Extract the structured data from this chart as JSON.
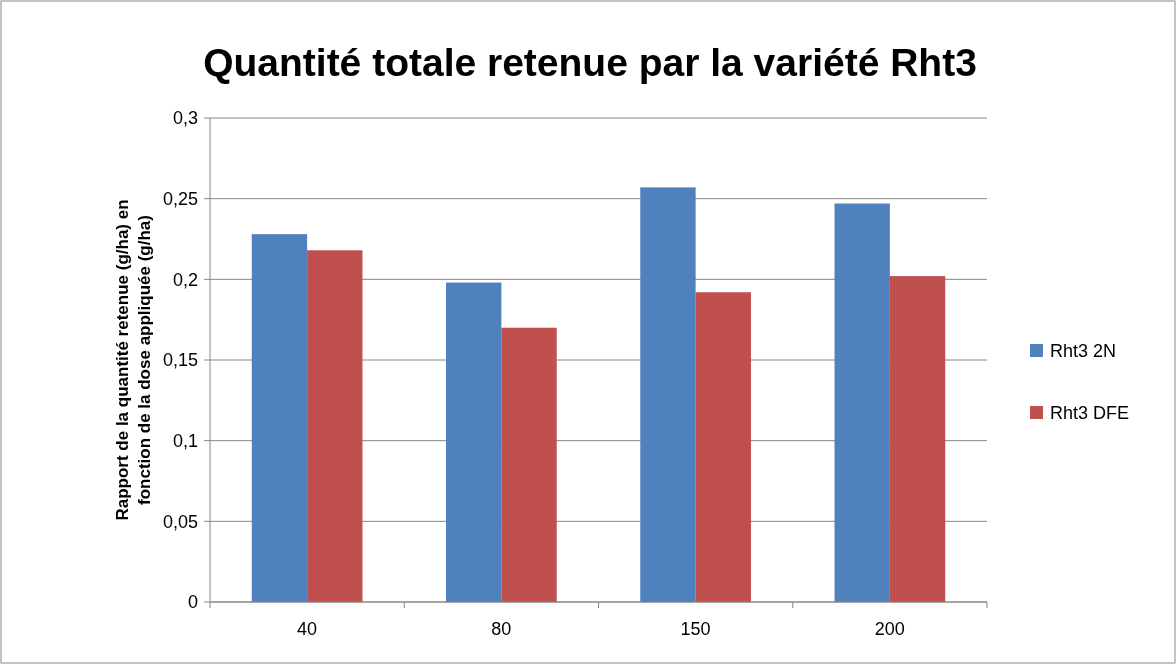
{
  "chart_data": {
    "type": "bar",
    "title": "Quantité totale retenue par la variété Rht3",
    "ylabel": "Rapport de la quantité retenue (g/ha) en fonction de la dose appliquée (g/ha)",
    "categories": [
      "40",
      "80",
      "150",
      "200"
    ],
    "series": [
      {
        "name": "Rht3 2N",
        "color": "#4f81bd",
        "values": [
          0.228,
          0.198,
          0.257,
          0.247
        ]
      },
      {
        "name": "Rht3 DFE",
        "color": "#c0504d",
        "values": [
          0.218,
          0.17,
          0.192,
          0.202
        ]
      }
    ],
    "ylim": [
      0,
      0.3
    ],
    "yticks": [
      0,
      {
        "value": 0.05,
        "label": "0,05"
      },
      {
        "value": 0.1,
        "label": "0,1"
      },
      {
        "value": 0.15,
        "label": "0,15"
      },
      {
        "value": 0.2,
        "label": "0,2"
      },
      {
        "value": 0.25,
        "label": "0,25"
      },
      {
        "value": 0.3,
        "label": "0,3"
      }
    ],
    "grid": "y",
    "legend": "right"
  }
}
